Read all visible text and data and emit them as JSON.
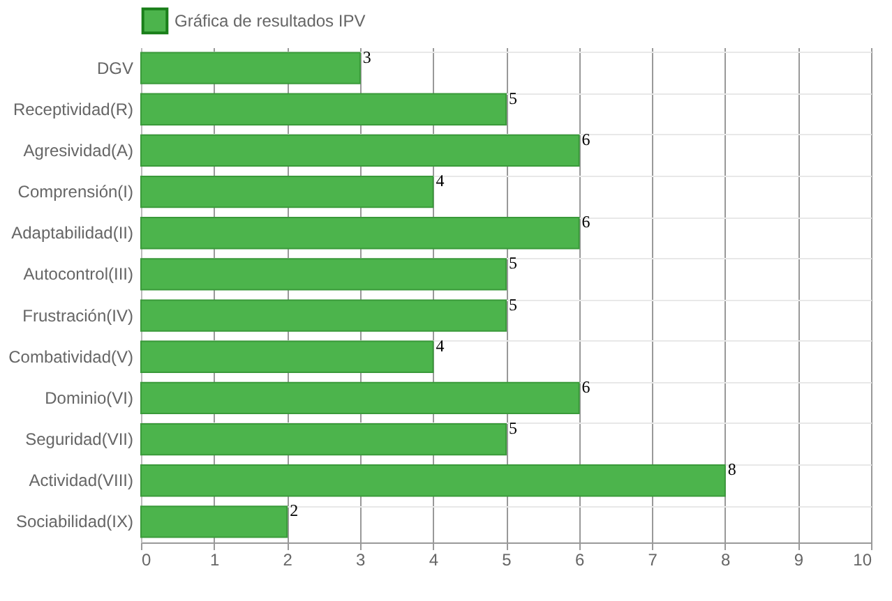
{
  "chart_data": {
    "type": "bar",
    "orientation": "horizontal",
    "categories": [
      "DGV",
      "Receptividad(R)",
      "Agresividad(A)",
      "Comprensión(I)",
      "Adaptabilidad(II)",
      "Autocontrol(III)",
      "Frustración(IV)",
      "Combatividad(V)",
      "Dominio(VI)",
      "Seguridad(VII)",
      "Actividad(VIII)",
      "Sociabilidad(IX)"
    ],
    "series": [
      {
        "name": "Gráfica de resultados IPV",
        "color": "#4cb44c",
        "values": [
          3,
          5,
          6,
          4,
          6,
          5,
          5,
          4,
          6,
          5,
          8,
          2
        ]
      }
    ],
    "xlim": [
      0,
      10
    ],
    "xticks": [
      0,
      1,
      2,
      3,
      4,
      5,
      6,
      7,
      8,
      9,
      10
    ],
    "grid": true,
    "legend": "top",
    "data_labels": true
  }
}
